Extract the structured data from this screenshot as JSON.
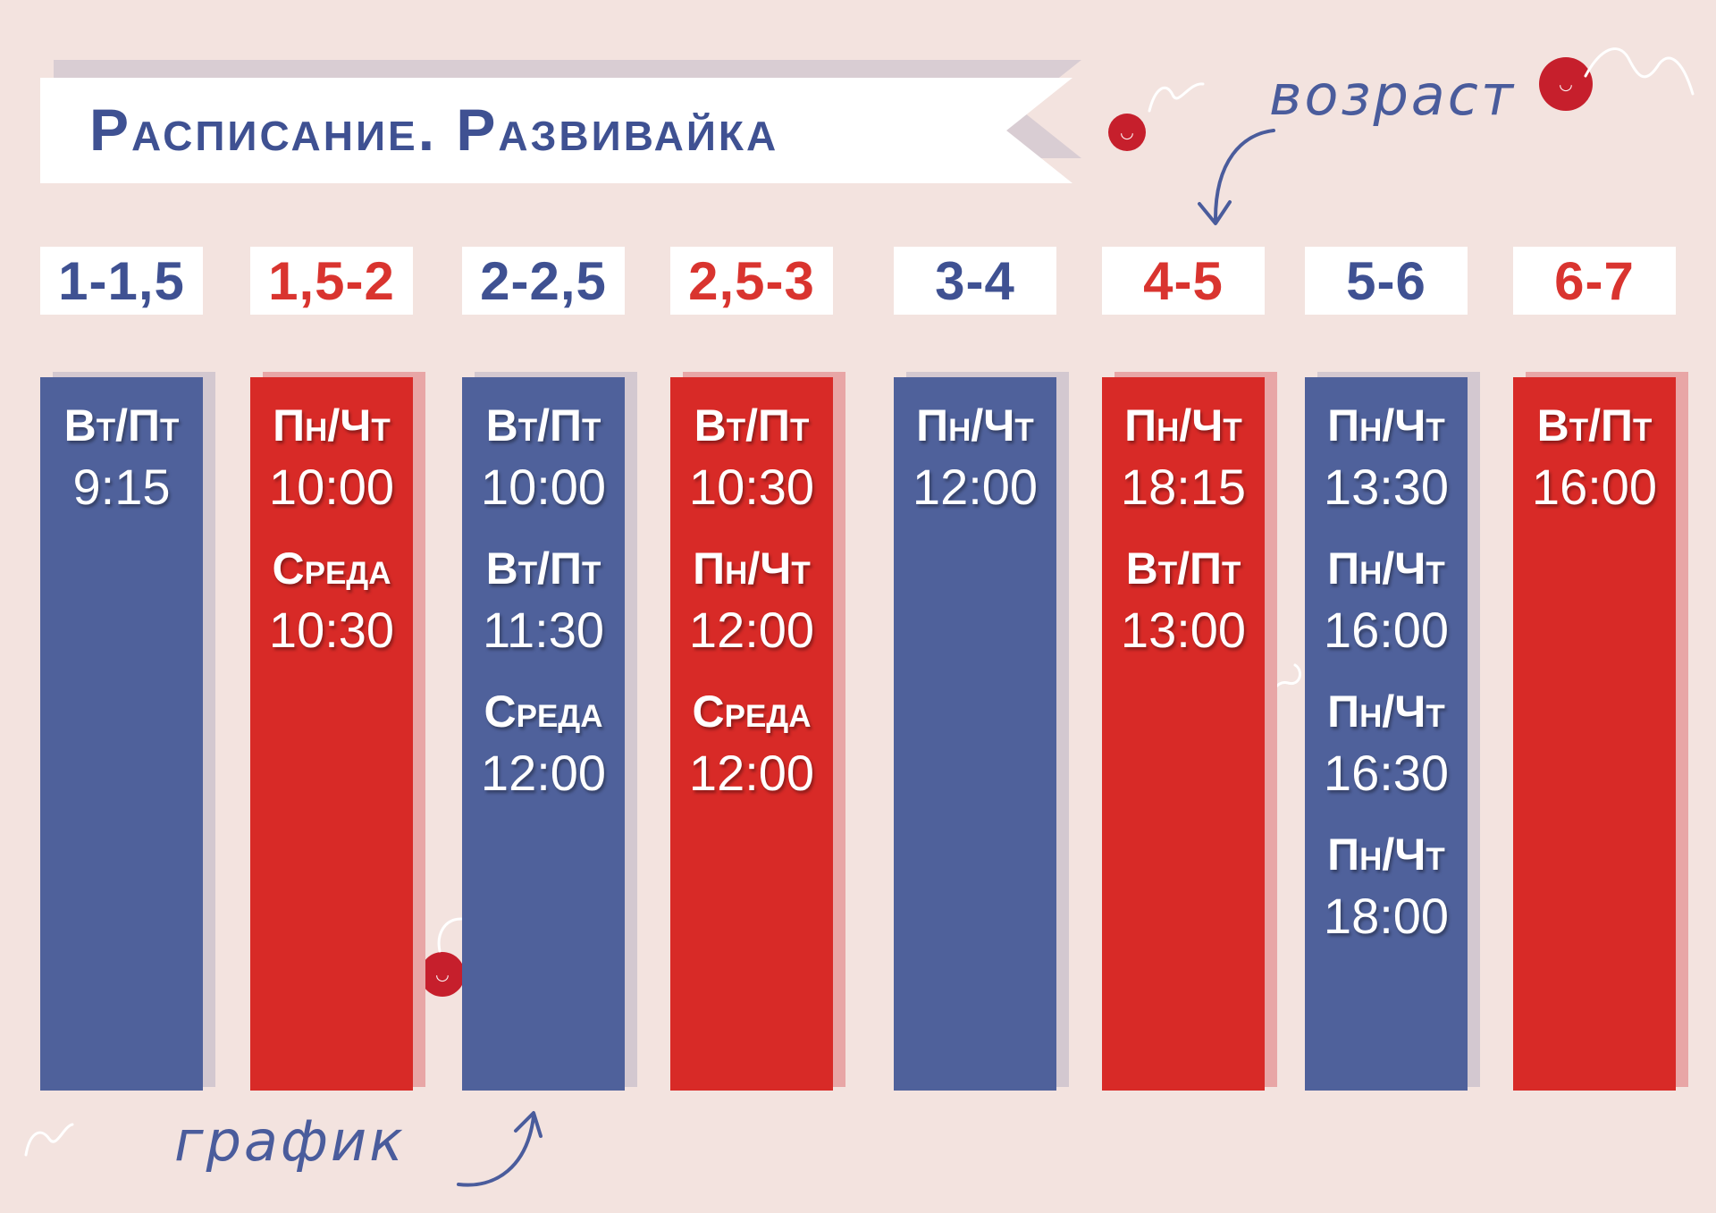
{
  "title": "Расписание. Развивайка",
  "notes": {
    "age": "возраст",
    "schedule": "график"
  },
  "colors": {
    "blue": "#4f619b",
    "red": "#d82a27",
    "background": "#f3e3df"
  },
  "icons": [
    "berry-smiley-icon",
    "squiggle-icon",
    "arrow-down-icon",
    "arrow-up-icon"
  ],
  "columns": [
    {
      "age": "1-1,5",
      "color": "blue",
      "slots": [
        {
          "day": "Вт/Пт",
          "time": "9:15"
        }
      ]
    },
    {
      "age": "1,5-2",
      "color": "red",
      "slots": [
        {
          "day": "Пн/Чт",
          "time": "10:00"
        },
        {
          "day": "Среда",
          "time": "10:30"
        }
      ]
    },
    {
      "age": "2-2,5",
      "color": "blue",
      "slots": [
        {
          "day": "Вт/Пт",
          "time": "10:00"
        },
        {
          "day": "Вт/Пт",
          "time": "11:30"
        },
        {
          "day": "Среда",
          "time": "12:00"
        }
      ]
    },
    {
      "age": "2,5-3",
      "color": "red",
      "slots": [
        {
          "day": "Вт/Пт",
          "time": "10:30"
        },
        {
          "day": "Пн/Чт",
          "time": "12:00"
        },
        {
          "day": "Среда",
          "time": "12:00"
        }
      ]
    },
    {
      "age": "3-4",
      "color": "blue",
      "slots": [
        {
          "day": "Пн/Чт",
          "time": "12:00"
        }
      ]
    },
    {
      "age": "4-5",
      "color": "red",
      "slots": [
        {
          "day": "Пн/Чт",
          "time": "18:15"
        },
        {
          "day": "Вт/Пт",
          "time": "13:00"
        }
      ]
    },
    {
      "age": "5-6",
      "color": "blue",
      "slots": [
        {
          "day": "Пн/Чт",
          "time": "13:30"
        },
        {
          "day": "Пн/Чт",
          "time": "16:00"
        },
        {
          "day": "Пн/Чт",
          "time": "16:30"
        },
        {
          "day": "Пн/Чт",
          "time": "18:00"
        }
      ]
    },
    {
      "age": "6-7",
      "color": "red",
      "slots": [
        {
          "day": "Вт/Пт",
          "time": "16:00"
        }
      ]
    }
  ]
}
